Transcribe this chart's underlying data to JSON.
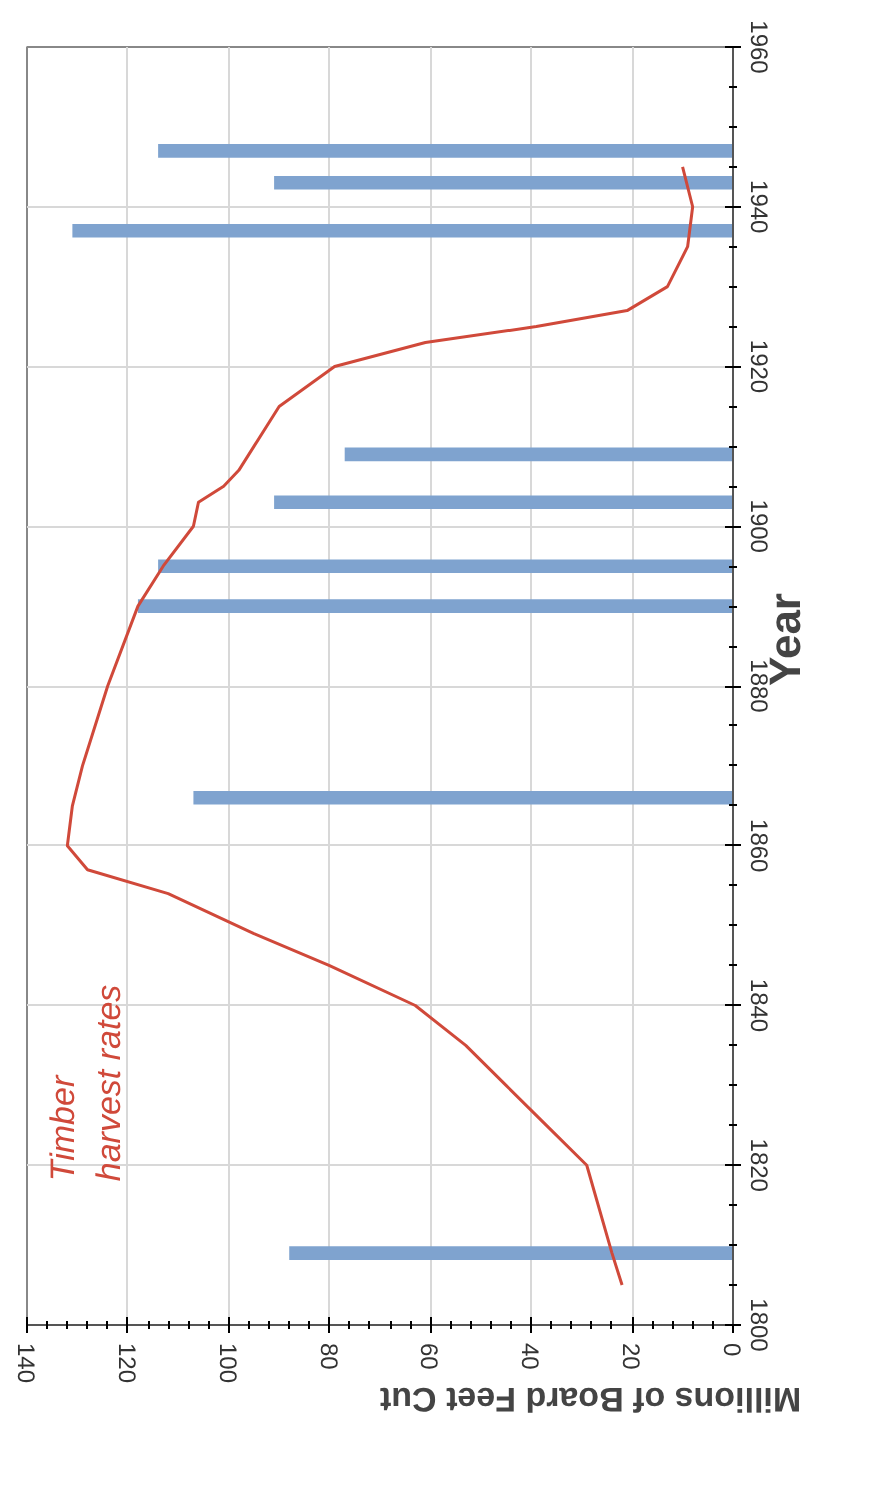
{
  "chart_data": {
    "type": "bar",
    "orientation": "horizontal",
    "xlabel": "Millions of Board Feet Cut",
    "ylabel": "Year",
    "xlim": [
      140,
      0
    ],
    "xticks": [
      0,
      20,
      40,
      60,
      80,
      100,
      120,
      140
    ],
    "ylim": [
      1800,
      1960
    ],
    "yticks": [
      1800,
      1820,
      1840,
      1860,
      1880,
      1900,
      1920,
      1940,
      1960
    ],
    "grid": true,
    "series": [
      {
        "color": "#7fa3cf",
        "x": [
          1809,
          1866,
          1890,
          1895,
          1903,
          1909,
          1937,
          1943,
          1947
        ],
        "values": [
          88,
          107,
          118,
          114,
          91,
          77,
          131,
          91,
          114
        ]
      },
      {
        "type": "line",
        "name": "Timber harvest rates",
        "color": "#d0493a",
        "x": [
          1805,
          1809,
          1820,
          1825,
          1830,
          1835,
          1840,
          1845,
          1849,
          1854,
          1857,
          1860,
          1865,
          1870,
          1880,
          1890,
          1895,
          1900,
          1903,
          1905,
          1907,
          1910,
          1915,
          1920,
          1923,
          1925,
          1927,
          1930,
          1935,
          1940,
          1945
        ],
        "values": [
          22,
          24,
          29,
          37,
          45,
          53,
          63,
          80,
          95,
          112,
          128,
          132,
          131,
          129,
          124,
          118,
          113,
          107,
          106,
          101,
          98,
          95,
          90,
          79,
          61,
          39,
          21,
          13,
          9,
          8,
          10
        ]
      }
    ]
  }
}
